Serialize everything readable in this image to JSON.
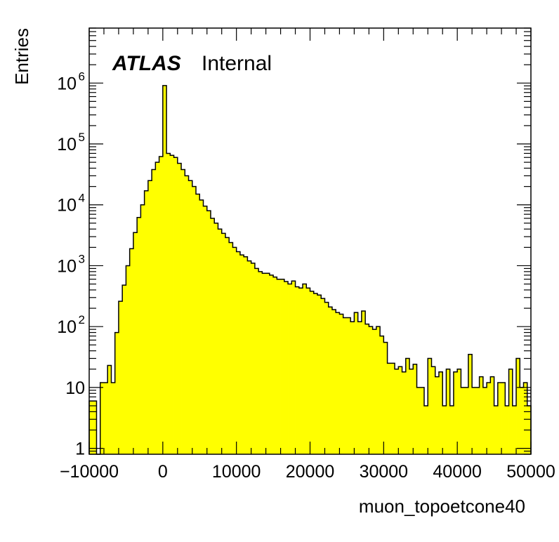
{
  "chart_data": {
    "type": "bar",
    "style": "histogram",
    "fill_color": "#ffff00",
    "line_color": "#000000",
    "xlabel": "muon_topoetcone40",
    "ylabel": "Entries",
    "xlim": [
      -10000,
      50000
    ],
    "ylim": [
      0.8,
      8000000
    ],
    "yscale": "log",
    "grid": false,
    "bin_width": 500,
    "x_start": -10000,
    "x_tick_labels": [
      "−10000",
      "0",
      "10000",
      "20000",
      "30000",
      "40000",
      "50000"
    ],
    "x_tick_values": [
      -10000,
      0,
      10000,
      20000,
      30000,
      40000,
      50000
    ],
    "y_tick_values": [
      1,
      10,
      100,
      1000,
      10000,
      100000,
      1000000
    ],
    "y_tick_labels": [
      {
        "base": "1",
        "exp": ""
      },
      {
        "base": "10",
        "exp": ""
      },
      {
        "base": "10",
        "exp": "2"
      },
      {
        "base": "10",
        "exp": "3"
      },
      {
        "base": "10",
        "exp": "4"
      },
      {
        "base": "10",
        "exp": "5"
      },
      {
        "base": "10",
        "exp": "6"
      }
    ],
    "values": [
      6,
      6,
      0,
      12,
      12,
      23,
      12,
      80,
      260,
      480,
      1000,
      1900,
      3500,
      6200,
      10000,
      17000,
      25000,
      38000,
      50000,
      62000,
      910000,
      70000,
      65000,
      60000,
      48000,
      38000,
      30000,
      25000,
      20000,
      15000,
      12000,
      9500,
      8000,
      6000,
      5000,
      4000,
      3400,
      2900,
      2400,
      2000,
      1700,
      1500,
      1400,
      1200,
      1100,
      900,
      800,
      750,
      750,
      700,
      650,
      600,
      600,
      550,
      500,
      560,
      450,
      430,
      500,
      430,
      380,
      350,
      330,
      290,
      250,
      210,
      190,
      170,
      160,
      140,
      140,
      120,
      170,
      120,
      180,
      110,
      100,
      90,
      100,
      70,
      55,
      25,
      25,
      20,
      22,
      18,
      30,
      20,
      24,
      10,
      10,
      5,
      30,
      22,
      15,
      18,
      5,
      20,
      5,
      18,
      20,
      10,
      10,
      35,
      10,
      10,
      15,
      10,
      12,
      15,
      5,
      12,
      12,
      5,
      20,
      5,
      30,
      10,
      12,
      5
    ]
  },
  "label": {
    "atlas": "ATLAS",
    "status": "Internal"
  }
}
